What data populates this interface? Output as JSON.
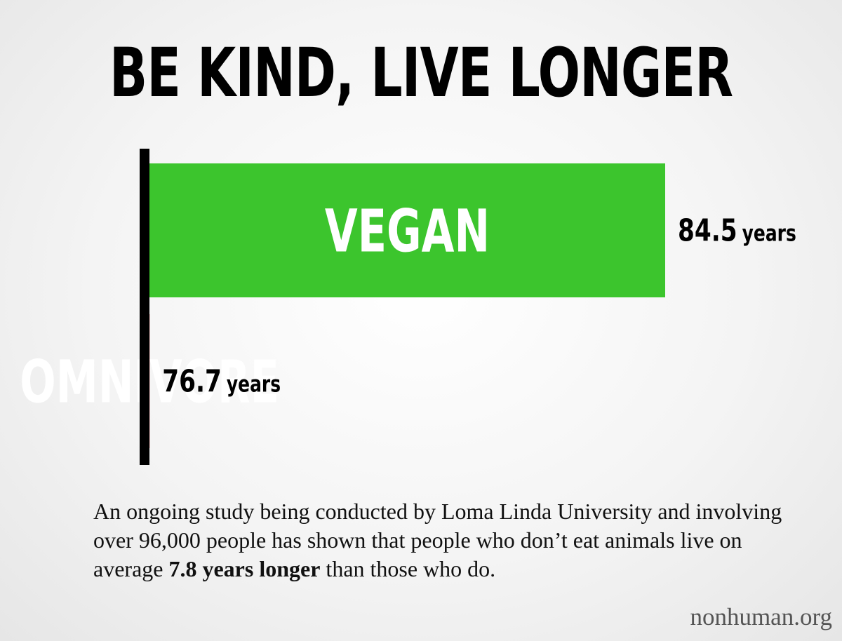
{
  "title": "BE KIND, LIVE LONGER",
  "chart_data": {
    "type": "bar",
    "orientation": "horizontal",
    "categories": [
      "VEGAN",
      "OMNIVORE"
    ],
    "values": [
      84.5,
      76.7
    ],
    "unit": "years",
    "colors": [
      "#3cc52d",
      "#c11b1e"
    ]
  },
  "caption": {
    "before": "An ongoing study being conducted by Loma Linda University and involving over 96,000 people has shown that people who don’t eat animals live on average ",
    "emphasis": "7.8 years longer",
    "after": " than those who do."
  },
  "footer": "nonhuman.org"
}
